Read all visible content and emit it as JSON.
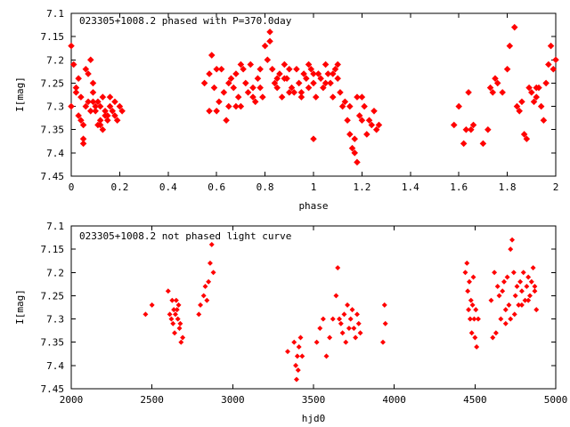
{
  "colors": {
    "points": "#ff0000",
    "axes": "#000000",
    "background": "#ffffff"
  },
  "chart_data": [
    {
      "type": "scatter",
      "title": "023305+1008.2 phased with P=370.0day",
      "xlabel": "phase",
      "ylabel": "I[mag]",
      "xlim": [
        0,
        2
      ],
      "ylim": [
        7.45,
        7.1
      ],
      "y_inverted": true,
      "grid": false,
      "legend": "none",
      "x_ticks": [
        0,
        0.2,
        0.4,
        0.6,
        0.8,
        1,
        1.2,
        1.4,
        1.6,
        1.8,
        2
      ],
      "x_tick_labels": [
        "0",
        "0.2",
        "0.4",
        "0.6",
        "0.8",
        "1",
        "1.2",
        "1.4",
        "1.6",
        "1.8",
        "2"
      ],
      "y_ticks": [
        7.1,
        7.15,
        7.2,
        7.25,
        7.3,
        7.35,
        7.4,
        7.45
      ],
      "y_tick_labels": [
        "7.1",
        "7.15",
        "7.2",
        "7.25",
        "7.3",
        "7.35",
        "7.4",
        "7.45"
      ],
      "series": [
        {
          "marker": "diamond-dot",
          "x": [
            0.0,
            0.0,
            0.01,
            0.02,
            0.03,
            0.03,
            0.04,
            0.04,
            0.05,
            0.05,
            0.06,
            0.06,
            0.07,
            0.07,
            0.08,
            0.08,
            0.09,
            0.09,
            0.1,
            0.1,
            0.11,
            0.11,
            0.12,
            0.12,
            0.13,
            0.13,
            0.14,
            0.14,
            0.15,
            0.15,
            0.16,
            0.16,
            0.17,
            0.18,
            0.19,
            0.2,
            0.21,
            0.05,
            0.09,
            0.02,
            0.12,
            0.18,
            0.55,
            0.57,
            0.58,
            0.59,
            0.6,
            0.61,
            0.62,
            0.63,
            0.64,
            0.65,
            0.66,
            0.67,
            0.68,
            0.69,
            0.7,
            0.71,
            0.72,
            0.73,
            0.74,
            0.75,
            0.76,
            0.77,
            0.78,
            0.79,
            0.8,
            0.81,
            0.82,
            0.83,
            0.84,
            0.85,
            0.86,
            0.87,
            0.88,
            0.89,
            0.9,
            0.91,
            0.92,
            0.93,
            0.94,
            0.95,
            0.96,
            0.97,
            0.98,
            0.99,
            1.0,
            1.01,
            1.02,
            1.03,
            1.04,
            1.05,
            1.06,
            1.07,
            1.08,
            1.09,
            1.1,
            1.11,
            1.12,
            1.13,
            1.14,
            1.15,
            1.16,
            1.17,
            1.18,
            1.19,
            1.2,
            1.21,
            1.22,
            1.23,
            1.24,
            1.25,
            1.26,
            1.27,
            0.6,
            0.65,
            0.7,
            0.75,
            0.85,
            0.9,
            0.95,
            1.0,
            1.05,
            1.1,
            1.15,
            1.2,
            0.68,
            0.78,
            0.88,
            0.98,
            1.08,
            1.18,
            0.82,
            0.57,
            1.0,
            1.17,
            1.58,
            1.6,
            1.62,
            1.63,
            1.64,
            1.65,
            1.66,
            1.7,
            1.72,
            1.73,
            1.75,
            1.76,
            1.78,
            1.8,
            1.81,
            1.83,
            1.84,
            1.85,
            1.86,
            1.87,
            1.88,
            1.89,
            1.9,
            1.91,
            1.92,
            1.93,
            1.94,
            1.95,
            1.96,
            1.97,
            1.98,
            1.99,
            2.0,
            1.74,
            1.92
          ],
          "y": [
            7.17,
            7.3,
            7.21,
            7.26,
            7.24,
            7.32,
            7.28,
            7.33,
            7.37,
            7.34,
            7.22,
            7.3,
            7.23,
            7.29,
            7.2,
            7.31,
            7.27,
            7.29,
            7.3,
            7.31,
            7.34,
            7.29,
            7.3,
            7.33,
            7.28,
            7.35,
            7.32,
            7.31,
            7.33,
            7.32,
            7.3,
            7.28,
            7.31,
            7.32,
            7.33,
            7.3,
            7.31,
            7.38,
            7.25,
            7.27,
            7.34,
            7.29,
            7.25,
            7.23,
            7.19,
            7.26,
            7.31,
            7.29,
            7.22,
            7.27,
            7.33,
            7.3,
            7.24,
            7.26,
            7.23,
            7.28,
            7.3,
            7.22,
            7.25,
            7.27,
            7.21,
            7.26,
            7.29,
            7.24,
            7.22,
            7.28,
            7.17,
            7.2,
            7.14,
            7.22,
            7.25,
            7.24,
            7.23,
            7.28,
            7.21,
            7.24,
            7.22,
            7.26,
            7.27,
            7.22,
            7.25,
            7.28,
            7.23,
            7.24,
            7.21,
            7.22,
            7.25,
            7.28,
            7.23,
            7.24,
            7.26,
            7.21,
            7.23,
            7.25,
            7.28,
            7.22,
            7.21,
            7.27,
            7.3,
            7.29,
            7.33,
            7.36,
            7.39,
            7.4,
            7.42,
            7.32,
            7.28,
            7.3,
            7.36,
            7.33,
            7.34,
            7.31,
            7.35,
            7.34,
            7.22,
            7.25,
            7.21,
            7.28,
            7.26,
            7.27,
            7.27,
            7.23,
            7.25,
            7.24,
            7.3,
            7.33,
            7.3,
            7.26,
            7.24,
            7.26,
            7.23,
            7.28,
            7.16,
            7.31,
            7.37,
            7.37,
            7.34,
            7.3,
            7.38,
            7.35,
            7.27,
            7.35,
            7.34,
            7.38,
            7.35,
            7.26,
            7.24,
            7.25,
            7.27,
            7.22,
            7.17,
            7.13,
            7.3,
            7.31,
            7.29,
            7.36,
            7.37,
            7.26,
            7.27,
            7.29,
            7.28,
            7.26,
            7.3,
            7.33,
            7.25,
            7.21,
            7.17,
            7.22,
            7.2,
            7.27,
            7.26
          ]
        }
      ]
    },
    {
      "type": "scatter",
      "title": "023305+1008.2 not phased light curve",
      "xlabel": "hjd0",
      "ylabel": "I[mag]",
      "xlim": [
        2000,
        5000
      ],
      "ylim": [
        7.45,
        7.1
      ],
      "y_inverted": true,
      "grid": false,
      "legend": "none",
      "x_ticks": [
        2000,
        2500,
        3000,
        3500,
        4000,
        4500,
        5000
      ],
      "x_tick_labels": [
        "2000",
        "2500",
        "3000",
        "3500",
        "4000",
        "4500",
        "5000"
      ],
      "y_ticks": [
        7.1,
        7.15,
        7.2,
        7.25,
        7.3,
        7.35,
        7.4,
        7.45
      ],
      "y_tick_labels": [
        "7.1",
        "7.15",
        "7.2",
        "7.25",
        "7.3",
        "7.35",
        "7.4",
        "7.45"
      ],
      "series": [
        {
          "marker": "diamond",
          "x": [
            2460,
            2500,
            2600,
            2610,
            2620,
            2625,
            2630,
            2635,
            2640,
            2645,
            2650,
            2655,
            2660,
            2665,
            2670,
            2675,
            2680,
            2690,
            2790,
            2800,
            2820,
            2830,
            2840,
            2850,
            2860,
            2870,
            2880,
            3340,
            3380,
            3390,
            3395,
            3400,
            3405,
            3410,
            3420,
            3430,
            3520,
            3540,
            3560,
            3580,
            3600,
            3620,
            3640,
            3650,
            3660,
            3670,
            3680,
            3690,
            3700,
            3710,
            3720,
            3730,
            3740,
            3750,
            3760,
            3770,
            3780,
            3790,
            3930,
            3940,
            3945,
            4440,
            4450,
            4455,
            4460,
            4465,
            4470,
            4475,
            4480,
            4485,
            4490,
            4495,
            4500,
            4505,
            4510,
            4520,
            4600,
            4620,
            4640,
            4650,
            4660,
            4670,
            4680,
            4690,
            4700,
            4710,
            4720,
            4730,
            4740,
            4750,
            4760,
            4770,
            4780,
            4790,
            4800,
            4810,
            4820,
            4830,
            4840,
            4850,
            4860,
            4870,
            4880,
            4630,
            4690,
            4745,
            4790,
            4830,
            4870,
            4610,
            4720
          ],
          "y": [
            7.29,
            7.27,
            7.24,
            7.29,
            7.3,
            7.26,
            7.31,
            7.28,
            7.33,
            7.29,
            7.26,
            7.28,
            7.3,
            7.27,
            7.32,
            7.31,
            7.35,
            7.34,
            7.29,
            7.27,
            7.25,
            7.23,
            7.26,
            7.22,
            7.18,
            7.14,
            7.2,
            7.37,
            7.35,
            7.4,
            7.43,
            7.38,
            7.41,
            7.36,
            7.34,
            7.38,
            7.35,
            7.32,
            7.3,
            7.38,
            7.34,
            7.3,
            7.25,
            7.19,
            7.3,
            7.31,
            7.33,
            7.29,
            7.35,
            7.27,
            7.32,
            7.3,
            7.28,
            7.32,
            7.34,
            7.29,
            7.31,
            7.33,
            7.35,
            7.27,
            7.31,
            7.2,
            7.18,
            7.24,
            7.28,
            7.22,
            7.3,
            7.26,
            7.33,
            7.27,
            7.21,
            7.3,
            7.34,
            7.28,
            7.36,
            7.3,
            7.26,
            7.2,
            7.23,
            7.25,
            7.3,
            7.24,
            7.22,
            7.28,
            7.21,
            7.27,
            7.15,
            7.13,
            7.2,
            7.25,
            7.23,
            7.27,
            7.22,
            7.24,
            7.2,
            7.26,
            7.23,
            7.21,
            7.25,
            7.22,
            7.19,
            7.24,
            7.28,
            7.33,
            7.31,
            7.29,
            7.27,
            7.26,
            7.23,
            7.34,
            7.3
          ]
        }
      ]
    }
  ]
}
